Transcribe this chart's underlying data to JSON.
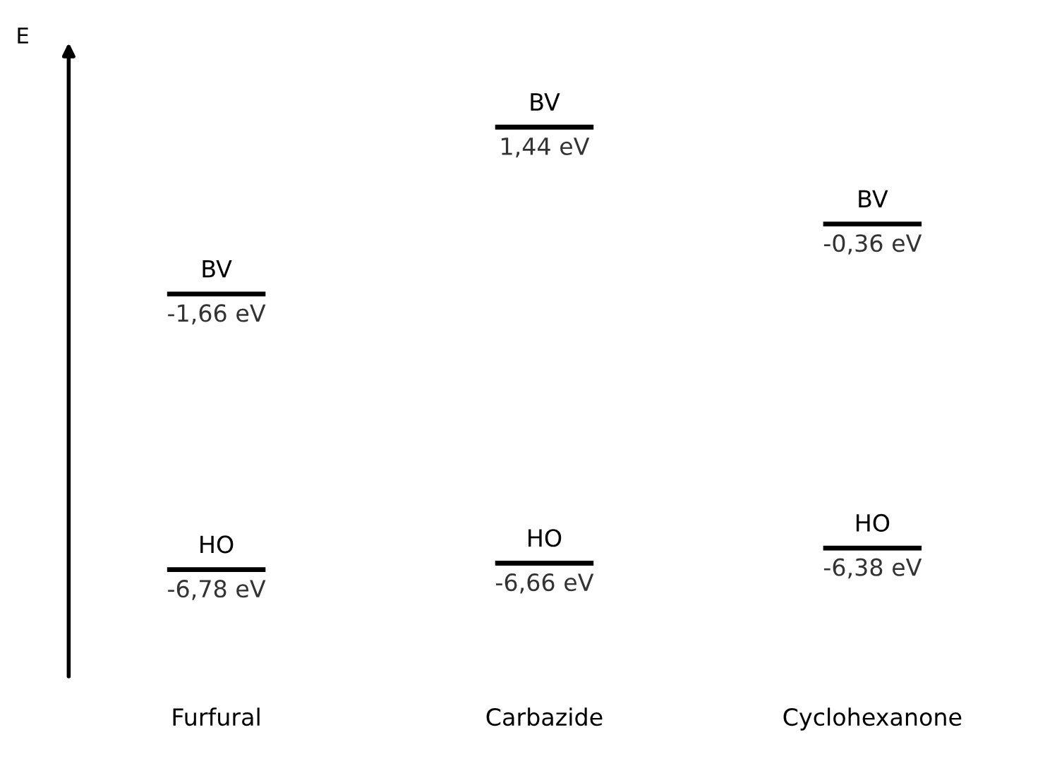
{
  "chart_data": {
    "type": "other",
    "ylabel": "E",
    "categories": [
      "Furfural",
      "Carbazide",
      "Cyclohexanone"
    ],
    "series": [
      {
        "name": "BV",
        "color": "#000000",
        "values": [
          -1.66,
          1.44,
          -0.36
        ],
        "value_labels": [
          "-1,66 eV",
          "1,44 eV",
          "-0,36 eV"
        ]
      },
      {
        "name": "HO",
        "color": "#000000",
        "values": [
          -6.78,
          -6.66,
          -6.38
        ],
        "value_labels": [
          "-6,78 eV",
          "-6,66 eV",
          "-6,38 eV"
        ]
      }
    ]
  }
}
